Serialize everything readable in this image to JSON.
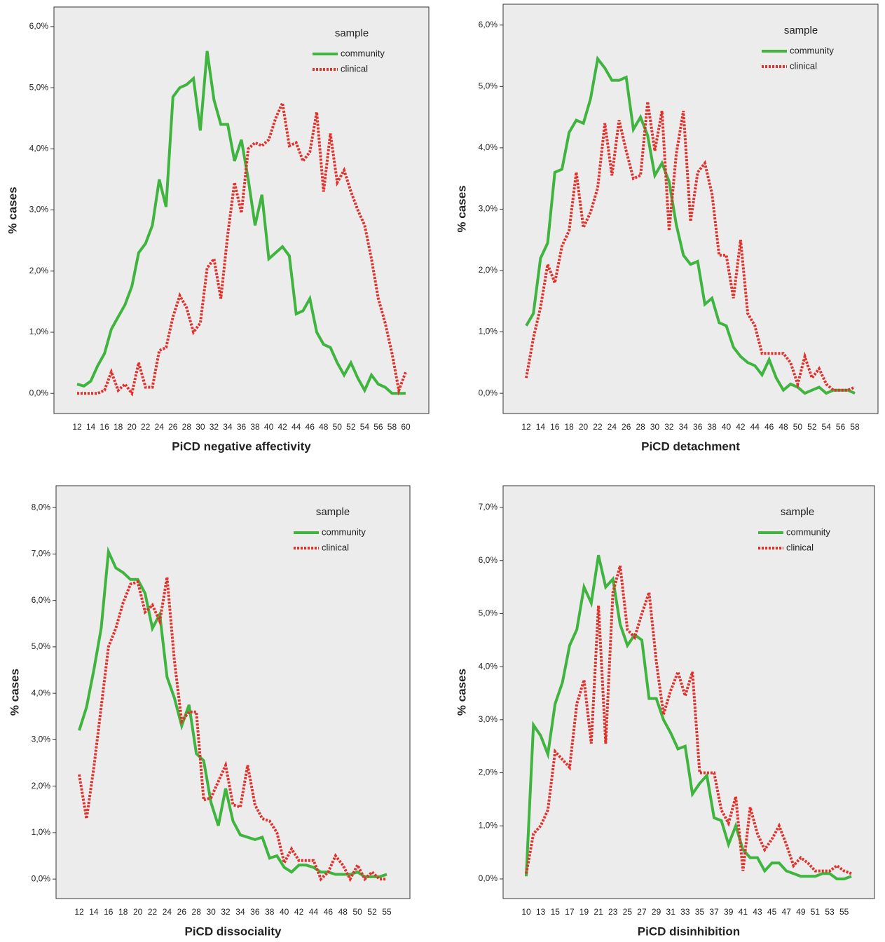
{
  "chart_data": [
    {
      "type": "line",
      "x_label": "PiCD negative affectivity",
      "y_label": "% cases",
      "legend_title": "sample",
      "legend": "top-right",
      "categories": [
        12,
        null,
        14,
        null,
        16,
        null,
        18,
        null,
        20,
        null,
        22,
        null,
        24,
        null,
        26,
        null,
        28,
        null,
        30,
        null,
        32,
        null,
        34,
        null,
        36,
        null,
        38,
        null,
        40,
        null,
        42,
        null,
        44,
        null,
        46,
        null,
        48,
        null,
        50,
        null,
        52,
        null,
        54,
        null,
        56,
        null,
        58,
        null,
        60
      ],
      "ylim": [
        -0.33,
        6.32
      ],
      "yticks": [
        {
          "value": 0,
          "label": "0,0%"
        },
        {
          "value": 1,
          "label": "1,0%"
        },
        {
          "value": 2,
          "label": "2,0%"
        },
        {
          "value": 3,
          "label": "3,0%"
        },
        {
          "value": 4,
          "label": "4,0%"
        },
        {
          "value": 5,
          "label": "5,0%"
        },
        {
          "value": 6,
          "label": "6,0%"
        }
      ],
      "series": [
        {
          "name": "community",
          "color": "#3fb43f",
          "style": "solid",
          "values": [
            0.15,
            0.12,
            0.2,
            0.45,
            0.65,
            1.05,
            1.25,
            1.45,
            1.75,
            2.3,
            2.45,
            2.75,
            3.5,
            3.05,
            4.85,
            5.0,
            5.05,
            5.15,
            4.3,
            5.6,
            4.8,
            4.4,
            4.4,
            3.8,
            4.15,
            3.5,
            2.75,
            3.25,
            2.2,
            2.3,
            2.4,
            2.25,
            1.3,
            1.35,
            1.55,
            1.0,
            0.8,
            0.75,
            0.5,
            0.3,
            0.5,
            0.25,
            0.05,
            0.3,
            0.15,
            0.1,
            0.0,
            0.0,
            0.0
          ]
        },
        {
          "name": "clinical",
          "color": "#e2302b",
          "style": "dotted",
          "values": [
            0,
            0,
            0,
            0,
            0.05,
            0.35,
            0.05,
            0.15,
            0.0,
            0.5,
            0.1,
            0.1,
            0.7,
            0.75,
            1.25,
            1.6,
            1.4,
            1.0,
            1.15,
            2.05,
            2.2,
            1.55,
            2.6,
            3.45,
            2.95,
            4.0,
            4.1,
            4.05,
            4.15,
            4.5,
            4.75,
            4.05,
            4.1,
            3.8,
            3.95,
            4.6,
            3.3,
            4.25,
            3.45,
            3.65,
            3.3,
            3.0,
            2.75,
            2.2,
            1.55,
            1.15,
            0.65,
            0.05,
            0.35
          ]
        }
      ]
    },
    {
      "type": "line",
      "x_label": "PiCD detachment",
      "y_label": "% cases",
      "legend_title": "sample",
      "legend": "top-right",
      "categories": [
        12,
        null,
        14,
        null,
        16,
        null,
        18,
        null,
        20,
        null,
        22,
        null,
        24,
        null,
        26,
        null,
        28,
        null,
        30,
        null,
        32,
        null,
        34,
        null,
        36,
        null,
        38,
        null,
        40,
        null,
        42,
        null,
        44,
        null,
        46,
        null,
        48,
        null,
        50,
        null,
        52,
        null,
        54,
        null,
        56,
        null,
        58
      ],
      "ylim": [
        -0.33,
        6.34
      ],
      "yticks": [
        {
          "value": 0,
          "label": "0,0%"
        },
        {
          "value": 1,
          "label": "1,0%"
        },
        {
          "value": 2,
          "label": "2,0%"
        },
        {
          "value": 3,
          "label": "3,0%"
        },
        {
          "value": 4,
          "label": "4,0%"
        },
        {
          "value": 5,
          "label": "5,0%"
        },
        {
          "value": 6,
          "label": "6,0%"
        }
      ],
      "series": [
        {
          "name": "community",
          "color": "#3fb43f",
          "style": "solid",
          "values": [
            1.1,
            1.3,
            2.2,
            2.45,
            3.6,
            3.65,
            4.25,
            4.45,
            4.4,
            4.8,
            5.45,
            5.3,
            5.1,
            5.1,
            5.15,
            4.3,
            4.5,
            4.2,
            3.55,
            3.75,
            3.45,
            2.75,
            2.25,
            2.1,
            2.15,
            1.45,
            1.55,
            1.15,
            1.1,
            0.75,
            0.6,
            0.5,
            0.45,
            0.3,
            0.55,
            0.25,
            0.05,
            0.15,
            0.1,
            0.0,
            0.05,
            0.1,
            0.0,
            0.05,
            0.05,
            0.05,
            0.0
          ]
        },
        {
          "name": "clinical",
          "color": "#e2302b",
          "style": "dotted",
          "values": [
            0.25,
            0.9,
            1.4,
            2.1,
            1.8,
            2.4,
            2.65,
            3.6,
            2.7,
            2.95,
            3.35,
            4.4,
            3.55,
            4.45,
            3.95,
            3.5,
            3.55,
            4.75,
            3.95,
            4.6,
            2.65,
            3.9,
            4.6,
            2.8,
            3.6,
            3.75,
            3.25,
            2.25,
            2.25,
            1.55,
            2.5,
            1.3,
            1.1,
            0.65,
            0.65,
            0.65,
            0.65,
            0.5,
            0.15,
            0.6,
            0.25,
            0.4,
            0.15,
            0.05,
            0.05,
            0.05,
            0.1
          ]
        }
      ]
    },
    {
      "type": "line",
      "x_label": "PiCD dissociality",
      "y_label": "% cases",
      "legend_title": "sample",
      "legend": "top-right",
      "categories": [
        12,
        null,
        14,
        null,
        16,
        null,
        18,
        null,
        20,
        null,
        22,
        null,
        24,
        null,
        26,
        null,
        28,
        null,
        30,
        null,
        32,
        null,
        34,
        null,
        36,
        null,
        38,
        null,
        40,
        null,
        42,
        null,
        44,
        null,
        46,
        null,
        48,
        null,
        50,
        null,
        52,
        null,
        55
      ],
      "ylim": [
        -0.42,
        8.47
      ],
      "yticks": [
        {
          "value": 0,
          "label": "0,0%"
        },
        {
          "value": 1,
          "label": "1,0%"
        },
        {
          "value": 2,
          "label": "2,0%"
        },
        {
          "value": 3,
          "label": "3,0%"
        },
        {
          "value": 4,
          "label": "4,0%"
        },
        {
          "value": 5,
          "label": "5,0%"
        },
        {
          "value": 6,
          "label": "6,0%"
        },
        {
          "value": 7,
          "label": "7,0%"
        },
        {
          "value": 8,
          "label": "8,0%"
        }
      ],
      "series": [
        {
          "name": "community",
          "color": "#3fb43f",
          "style": "solid",
          "values": [
            3.2,
            3.7,
            4.5,
            5.4,
            7.05,
            6.7,
            6.6,
            6.45,
            6.45,
            6.15,
            5.4,
            5.7,
            4.35,
            3.9,
            3.3,
            3.75,
            2.7,
            2.55,
            1.65,
            1.15,
            1.95,
            1.25,
            0.95,
            0.9,
            0.85,
            0.9,
            0.45,
            0.5,
            0.25,
            0.15,
            0.3,
            0.3,
            0.25,
            0.15,
            0.15,
            0.1,
            0.1,
            0.1,
            0.15,
            0.05,
            0.05,
            0.05,
            0.1
          ]
        },
        {
          "name": "clinical",
          "color": "#e2302b",
          "style": "dotted",
          "values": [
            2.25,
            1.3,
            2.4,
            3.7,
            5.0,
            5.4,
            5.95,
            6.35,
            6.4,
            5.75,
            5.9,
            5.55,
            6.5,
            4.7,
            3.4,
            3.6,
            3.6,
            1.7,
            1.75,
            2.1,
            2.45,
            1.6,
            1.55,
            2.45,
            1.6,
            1.3,
            1.25,
            1.0,
            0.35,
            0.65,
            0.4,
            0.4,
            0.4,
            0.0,
            0.15,
            0.5,
            0.3,
            0.0,
            0.3,
            0.0,
            0.15,
            0.0,
            0.0
          ]
        }
      ]
    },
    {
      "type": "line",
      "x_label": "PiCD disinhibition",
      "y_label": "% cases",
      "legend_title": "sample",
      "legend": "top-right",
      "categories": [
        10,
        null,
        13,
        null,
        15,
        null,
        17,
        null,
        19,
        null,
        21,
        null,
        23,
        null,
        25,
        null,
        27,
        null,
        29,
        null,
        31,
        null,
        33,
        null,
        35,
        null,
        37,
        null,
        39,
        null,
        41,
        null,
        43,
        null,
        45,
        null,
        47,
        null,
        49,
        null,
        51,
        null,
        53,
        null,
        55,
        null
      ],
      "ylim": [
        -0.37,
        7.41
      ],
      "yticks": [
        {
          "value": 0,
          "label": "0,0%"
        },
        {
          "value": 1,
          "label": "1,0%"
        },
        {
          "value": 2,
          "label": "2,0%"
        },
        {
          "value": 3,
          "label": "3,0%"
        },
        {
          "value": 4,
          "label": "4,0%"
        },
        {
          "value": 5,
          "label": "5,0%"
        },
        {
          "value": 6,
          "label": "6,0%"
        },
        {
          "value": 7,
          "label": "7,0%"
        }
      ],
      "series": [
        {
          "name": "community",
          "color": "#3fb43f",
          "style": "solid",
          "values": [
            0.05,
            2.9,
            2.7,
            2.35,
            3.3,
            3.7,
            4.4,
            4.7,
            5.5,
            5.2,
            6.1,
            5.5,
            5.65,
            4.8,
            4.4,
            4.6,
            4.5,
            3.4,
            3.4,
            3.0,
            2.75,
            2.45,
            2.5,
            1.6,
            1.8,
            1.95,
            1.15,
            1.1,
            0.65,
            1.0,
            0.55,
            0.4,
            0.4,
            0.15,
            0.3,
            0.3,
            0.15,
            0.1,
            0.05,
            0.05,
            0.05,
            0.1,
            0.1,
            0.0,
            0.0,
            0.05
          ]
        },
        {
          "name": "clinical",
          "color": "#e2302b",
          "style": "dotted",
          "values": [
            0.1,
            0.85,
            1.0,
            1.3,
            2.4,
            2.25,
            2.1,
            3.3,
            3.75,
            2.55,
            5.15,
            2.55,
            5.4,
            5.9,
            4.7,
            4.55,
            5.0,
            5.4,
            4.1,
            3.1,
            3.55,
            3.9,
            3.45,
            3.9,
            2.0,
            2.0,
            2.0,
            1.3,
            1.05,
            1.55,
            0.15,
            1.35,
            0.85,
            0.55,
            0.75,
            1.0,
            0.65,
            0.25,
            0.4,
            0.3,
            0.15,
            0.15,
            0.15,
            0.25,
            0.15,
            0.1
          ]
        }
      ]
    }
  ]
}
